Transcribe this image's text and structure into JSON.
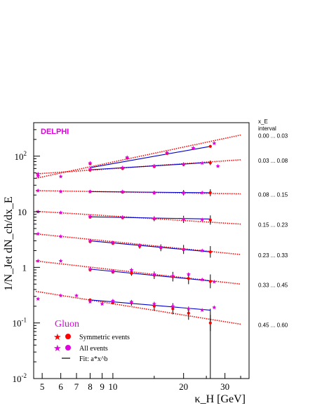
{
  "chart_data": {
    "type": "scatter",
    "title": "",
    "xlabel": "κ_H [GeV]",
    "ylabel": "1/N_Jet dN_ch/dx_E",
    "xscale": "log",
    "yscale": "log",
    "xlim": [
      4.6,
      38
    ],
    "ylim": [
      0.01,
      400
    ],
    "x_tick_labels": [
      "5",
      "6",
      "7",
      "8",
      "9",
      "10",
      "20",
      "30"
    ],
    "x_ticks": [
      5,
      6,
      7,
      8,
      9,
      10,
      20,
      30
    ],
    "y_ticks": [
      0.01,
      0.1,
      1,
      10,
      100
    ],
    "y_tick_labels": [
      {
        "base": "10",
        "exp": "-2"
      },
      {
        "base": "10",
        "exp": "-1"
      },
      {
        "base": "1",
        "exp": ""
      },
      {
        "base": "10",
        "exp": ""
      },
      {
        "base": "10",
        "exp": "2"
      }
    ],
    "experiment_label": "DELPHI",
    "sample_label": "Gluon",
    "interval_header": [
      "x_E",
      "interval"
    ],
    "colors": {
      "symmetric": "#ff0000",
      "all": "#e000e0",
      "fit_red": "#ff0000",
      "fit_blue": "#0000cc"
    },
    "legend": {
      "symmetric": "Symmetric events",
      "all": "All events",
      "fit": "Fit: a*x^b"
    },
    "intervals": [
      {
        "label": "0.00 ... 0.03",
        "fit_red": {
          "x": [
            4.7,
            35
          ],
          "y": [
            40,
            240
          ]
        },
        "fit_blue": {
          "x": [
            8,
            26
          ],
          "y": [
            62,
            150
          ]
        },
        "all_points": [
          {
            "x": 4.8,
            "y": 48
          },
          {
            "x": 8,
            "y": 75
          },
          {
            "x": 11.5,
            "y": 95
          },
          {
            "x": 17,
            "y": 115
          },
          {
            "x": 22,
            "y": 140
          },
          {
            "x": 27,
            "y": 170
          }
        ],
        "sym_points": [
          {
            "x": 8,
            "y": 73
          },
          {
            "x": 11.5,
            "y": 92
          },
          {
            "x": 17,
            "y": 112
          },
          {
            "x": 22,
            "y": 137
          },
          {
            "x": 26,
            "y": 150
          }
        ]
      },
      {
        "label": "0.03 ... 0.08",
        "fit_red": {
          "x": [
            4.7,
            35
          ],
          "y": [
            48,
            86
          ]
        },
        "fit_blue": {
          "x": [
            8,
            26
          ],
          "y": [
            57,
            77
          ]
        },
        "all_points": [
          {
            "x": 4.8,
            "y": 44
          },
          {
            "x": 6,
            "y": 43
          },
          {
            "x": 8,
            "y": 58
          },
          {
            "x": 11,
            "y": 62
          },
          {
            "x": 15,
            "y": 67
          },
          {
            "x": 20,
            "y": 72
          },
          {
            "x": 24,
            "y": 75
          },
          {
            "x": 28,
            "y": 66
          }
        ],
        "sym_points": [
          {
            "x": 8,
            "y": 56
          },
          {
            "x": 11,
            "y": 60
          },
          {
            "x": 15,
            "y": 65
          },
          {
            "x": 20,
            "y": 71
          },
          {
            "x": 26,
            "y": 76
          }
        ]
      },
      {
        "label": "0.08 ... 0.15",
        "fit_red": {
          "x": [
            4.7,
            35
          ],
          "y": [
            24,
            21
          ]
        },
        "fit_blue": {
          "x": [
            8,
            26
          ],
          "y": [
            23,
            22
          ]
        },
        "all_points": [
          {
            "x": 4.8,
            "y": 24
          },
          {
            "x": 6,
            "y": 23
          },
          {
            "x": 8,
            "y": 23
          },
          {
            "x": 11,
            "y": 23
          },
          {
            "x": 15,
            "y": 22
          },
          {
            "x": 20,
            "y": 22
          },
          {
            "x": 24,
            "y": 22
          }
        ],
        "sym_points": [
          {
            "x": 8,
            "y": 23
          },
          {
            "x": 11,
            "y": 22.5
          },
          {
            "x": 15,
            "y": 22
          },
          {
            "x": 20,
            "y": 22
          },
          {
            "x": 26,
            "y": 22
          }
        ]
      },
      {
        "label": "0.15 ... 0.23",
        "fit_red": {
          "x": [
            4.7,
            35
          ],
          "y": [
            10.2,
            6
          ]
        },
        "fit_blue": {
          "x": [
            8,
            26
          ],
          "y": [
            8.1,
            7.4
          ]
        },
        "all_points": [
          {
            "x": 4.8,
            "y": 10
          },
          {
            "x": 6,
            "y": 9.6
          },
          {
            "x": 8,
            "y": 8.2
          },
          {
            "x": 11,
            "y": 8
          },
          {
            "x": 15,
            "y": 7.6
          },
          {
            "x": 20,
            "y": 7.4
          },
          {
            "x": 24,
            "y": 7.2
          }
        ],
        "sym_points": [
          {
            "x": 8,
            "y": 8
          },
          {
            "x": 11,
            "y": 7.8
          },
          {
            "x": 15,
            "y": 7.5
          },
          {
            "x": 20,
            "y": 7.3
          },
          {
            "x": 26,
            "y": 7.1
          }
        ]
      },
      {
        "label": "0.23 ... 0.33",
        "fit_red": {
          "x": [
            4.7,
            35
          ],
          "y": [
            4,
            1.7
          ]
        },
        "fit_blue": {
          "x": [
            8,
            26
          ],
          "y": [
            3,
            1.9
          ]
        },
        "all_points": [
          {
            "x": 4.8,
            "y": 4
          },
          {
            "x": 6,
            "y": 3.6
          },
          {
            "x": 8,
            "y": 3
          },
          {
            "x": 10,
            "y": 2.8
          },
          {
            "x": 13,
            "y": 2.5
          },
          {
            "x": 16,
            "y": 2.3
          },
          {
            "x": 20,
            "y": 2.1
          },
          {
            "x": 24,
            "y": 2
          }
        ],
        "sym_points": [
          {
            "x": 8,
            "y": 2.9
          },
          {
            "x": 10,
            "y": 2.7
          },
          {
            "x": 13,
            "y": 2.4
          },
          {
            "x": 16,
            "y": 2.25
          },
          {
            "x": 20,
            "y": 2.1
          },
          {
            "x": 26,
            "y": 1.9
          }
        ]
      },
      {
        "label": "0.33 ... 0.45",
        "fit_red": {
          "x": [
            4.7,
            35
          ],
          "y": [
            1.3,
            0.5
          ]
        },
        "fit_blue": {
          "x": [
            8,
            26
          ],
          "y": [
            0.93,
            0.57
          ]
        },
        "all_points": [
          {
            "x": 4.8,
            "y": 1.3
          },
          {
            "x": 6,
            "y": 1.3
          },
          {
            "x": 8,
            "y": 0.93
          },
          {
            "x": 10,
            "y": 0.85
          },
          {
            "x": 12,
            "y": 0.9
          },
          {
            "x": 15,
            "y": 0.75
          },
          {
            "x": 18,
            "y": 0.7
          },
          {
            "x": 21,
            "y": 0.75
          },
          {
            "x": 24,
            "y": 0.6
          },
          {
            "x": 27,
            "y": 0.55
          }
        ],
        "sym_points": [
          {
            "x": 8,
            "y": 0.9
          },
          {
            "x": 10,
            "y": 0.82
          },
          {
            "x": 12,
            "y": 0.78
          },
          {
            "x": 15,
            "y": 0.72
          },
          {
            "x": 18,
            "y": 0.68
          },
          {
            "x": 21,
            "y": 0.63
          },
          {
            "x": 26,
            "y": 0.56
          }
        ]
      },
      {
        "label": "0.45 ... 0.60",
        "fit_red": {
          "x": [
            4.7,
            35
          ],
          "y": [
            0.37,
            0.095
          ]
        },
        "fit_blue": {
          "x": [
            8,
            26
          ],
          "y": [
            0.26,
            0.17
          ]
        },
        "all_points": [
          {
            "x": 4.8,
            "y": 0.27
          },
          {
            "x": 6,
            "y": 0.31
          },
          {
            "x": 7,
            "y": 0.31
          },
          {
            "x": 8,
            "y": 0.24
          },
          {
            "x": 9,
            "y": 0.22
          },
          {
            "x": 10,
            "y": 0.25
          },
          {
            "x": 12,
            "y": 0.24
          },
          {
            "x": 15,
            "y": 0.22
          },
          {
            "x": 18,
            "y": 0.2
          },
          {
            "x": 21,
            "y": 0.18
          },
          {
            "x": 24,
            "y": 0.17
          },
          {
            "x": 27,
            "y": 0.19
          }
        ],
        "sym_points": [
          {
            "x": 8,
            "y": 0.26
          },
          {
            "x": 10,
            "y": 0.23
          },
          {
            "x": 12,
            "y": 0.23
          },
          {
            "x": 15,
            "y": 0.2
          },
          {
            "x": 18,
            "y": 0.18
          },
          {
            "x": 21,
            "y": 0.15
          },
          {
            "x": 26,
            "y": 0.1
          }
        ]
      }
    ]
  }
}
